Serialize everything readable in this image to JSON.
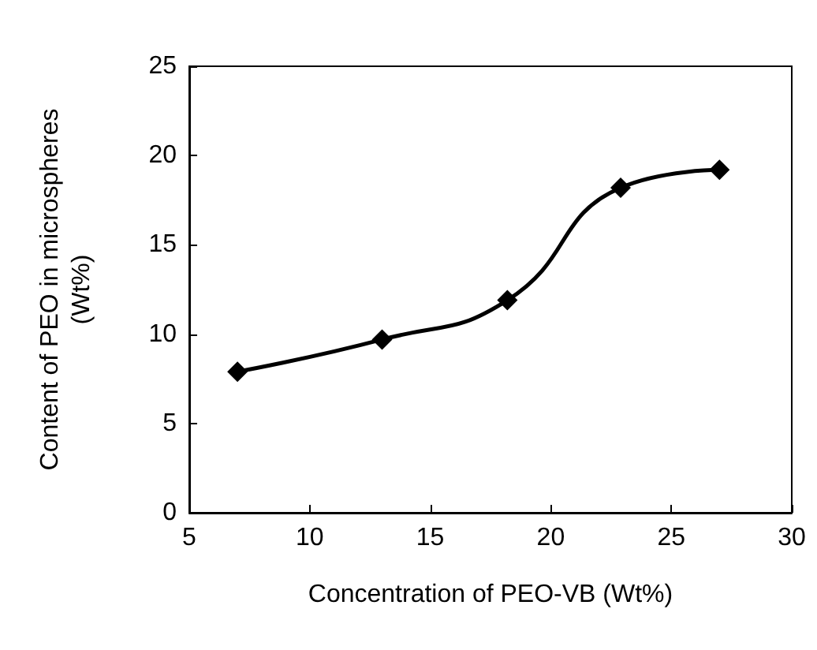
{
  "chart_data": {
    "type": "line",
    "xlabel": "Concentration of PEO-VB (Wt%)",
    "ylabel": "Content of PEO in microspheres\n(Wt%)",
    "x": [
      7,
      13,
      18.2,
      22.9,
      27
    ],
    "series": [
      {
        "color": "#000000",
        "values": [
          7.9,
          9.7,
          11.9,
          18.2,
          19.2
        ]
      }
    ],
    "xlim": [
      5,
      30
    ],
    "xticks": [
      5,
      10,
      15,
      20,
      25,
      30
    ],
    "ylim": [
      0,
      25
    ],
    "yticks": [
      0,
      5,
      10,
      15,
      20,
      25
    ],
    "marker": "diamond",
    "line_style": "solid"
  }
}
